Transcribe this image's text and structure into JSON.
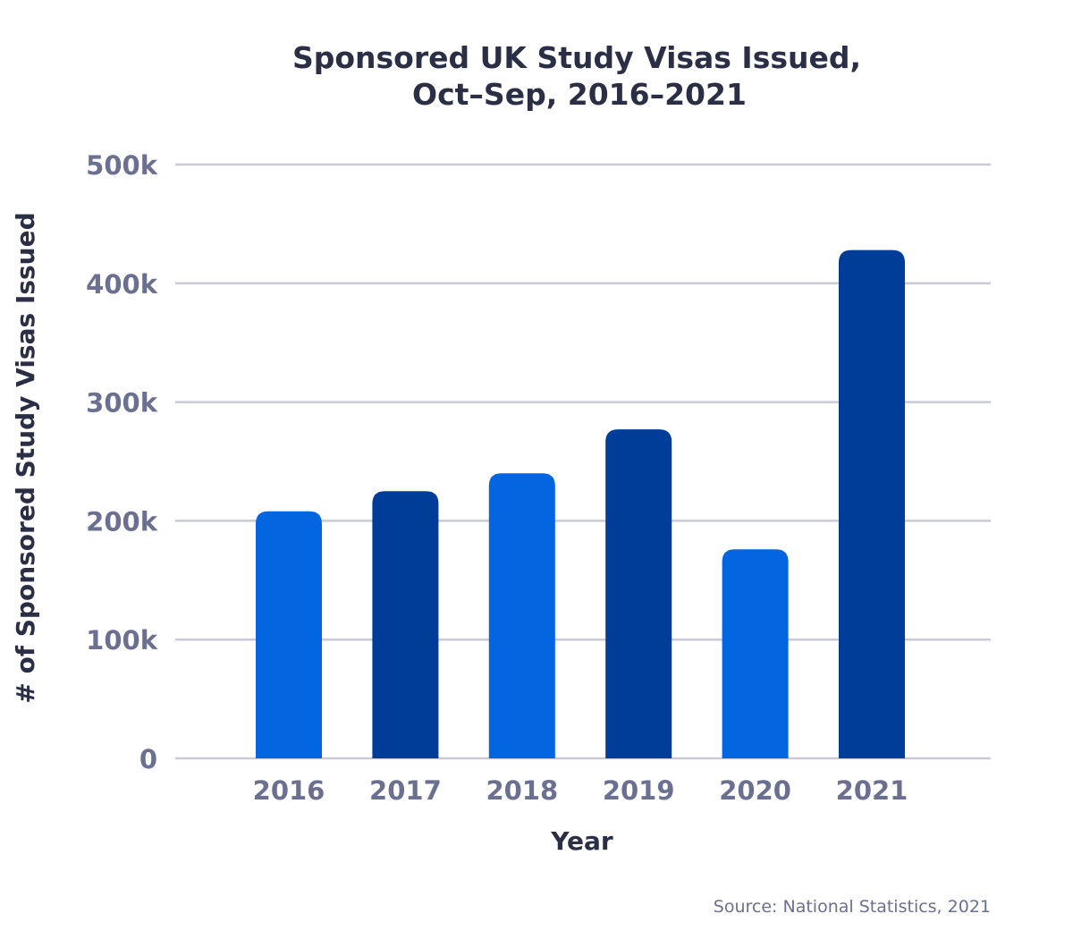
{
  "chart_data": {
    "type": "bar",
    "title": [
      "Sponsored UK Study Visas Issued,",
      "Oct–Sep, 2016–2021"
    ],
    "xlabel": "Year",
    "ylabel": "# of Sponsored Study Visas Issued",
    "categories": [
      "2016",
      "2017",
      "2018",
      "2019",
      "2020",
      "2021"
    ],
    "values": [
      208000,
      225000,
      240000,
      277000,
      176000,
      428000
    ],
    "bar_colors": [
      "#0366e0",
      "#003d99",
      "#0366e0",
      "#003d99",
      "#0366e0",
      "#003d99"
    ],
    "ylim": [
      0,
      500000
    ],
    "yticks": [
      0,
      100000,
      200000,
      300000,
      400000,
      500000
    ],
    "ytick_labels": [
      "0",
      "100k",
      "200k",
      "300k",
      "400k",
      "500k"
    ],
    "grid": true,
    "source": "Source: National Statistics, 2021"
  }
}
